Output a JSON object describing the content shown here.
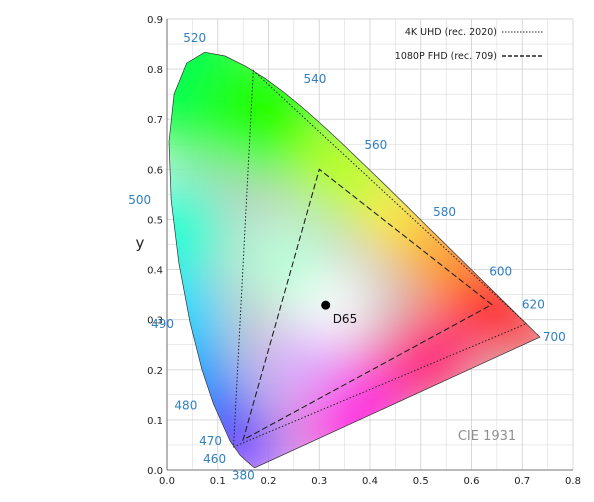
{
  "chart_data": {
    "type": "scatter",
    "title": "",
    "xlabel": "",
    "ylabel": "y",
    "xlim": [
      0.0,
      0.8
    ],
    "ylim": [
      0.0,
      0.9
    ],
    "grid": true,
    "x_ticks": [
      "0.0",
      "0.1",
      "0.2",
      "0.3",
      "0.4",
      "0.5",
      "0.6",
      "0.7",
      "0.8"
    ],
    "y_ticks": [
      "0.0",
      "0.1",
      "0.2",
      "0.3",
      "0.4",
      "0.5",
      "0.6",
      "0.7",
      "0.8",
      "0.9"
    ],
    "watermark": "CIE 1931",
    "colors": {
      "wavelength_label": "#2f7fc1",
      "axis_text": "#222222",
      "grid": "#d4d4d4",
      "triangle": "#222222"
    },
    "spectral_locus": {
      "x": [
        0.1741,
        0.1733,
        0.1714,
        0.1689,
        0.1644,
        0.1566,
        0.144,
        0.1241,
        0.0913,
        0.0687,
        0.0454,
        0.0235,
        0.0082,
        0.0039,
        0.0139,
        0.0389,
        0.0743,
        0.1142,
        0.1547,
        0.1929,
        0.2296,
        0.2658,
        0.3016,
        0.3373,
        0.3731,
        0.4087,
        0.4441,
        0.4788,
        0.5125,
        0.5448,
        0.5752,
        0.6029,
        0.627,
        0.6482,
        0.6658,
        0.6801,
        0.6915,
        0.7006,
        0.7079,
        0.714,
        0.719,
        0.723,
        0.726,
        0.7283,
        0.73,
        0.7347
      ],
      "y": [
        0.005,
        0.0048,
        0.0051,
        0.0069,
        0.0109,
        0.0177,
        0.0297,
        0.0578,
        0.1327,
        0.2007,
        0.295,
        0.4127,
        0.5384,
        0.6548,
        0.7502,
        0.812,
        0.8338,
        0.8262,
        0.8059,
        0.7816,
        0.7543,
        0.7243,
        0.6923,
        0.6589,
        0.6245,
        0.5896,
        0.5547,
        0.5202,
        0.4866,
        0.4544,
        0.4242,
        0.3965,
        0.3725,
        0.3514,
        0.334,
        0.3197,
        0.3083,
        0.2993,
        0.292,
        0.2859,
        0.2809,
        0.277,
        0.274,
        0.2717,
        0.27,
        0.2653
      ]
    },
    "wavelength_labels": [
      {
        "text": "380",
        "x": 0.1741,
        "y": 0.005
      },
      {
        "text": "460",
        "x": 0.144,
        "y": 0.0297
      },
      {
        "text": "470",
        "x": 0.1241,
        "y": 0.0578
      },
      {
        "text": "480",
        "x": 0.0913,
        "y": 0.1327
      },
      {
        "text": "490",
        "x": 0.0454,
        "y": 0.295
      },
      {
        "text": "500",
        "x": 0.0082,
        "y": 0.5384
      },
      {
        "text": "520",
        "x": 0.0743,
        "y": 0.8338
      },
      {
        "text": "540",
        "x": 0.2296,
        "y": 0.7543
      },
      {
        "text": "560",
        "x": 0.3731,
        "y": 0.6245
      },
      {
        "text": "580",
        "x": 0.5125,
        "y": 0.4866
      },
      {
        "text": "600",
        "x": 0.627,
        "y": 0.3725
      },
      {
        "text": "620",
        "x": 0.6915,
        "y": 0.3083
      },
      {
        "text": "700",
        "x": 0.7347,
        "y": 0.2653
      }
    ],
    "series": [
      {
        "name": "4K UHD (rec. 2020)",
        "style": "dotted",
        "points": [
          [
            0.708,
            0.292
          ],
          [
            0.17,
            0.797
          ],
          [
            0.131,
            0.046
          ]
        ]
      },
      {
        "name": "1080P FHD (rec. 709)",
        "style": "dashed",
        "points": [
          [
            0.64,
            0.33
          ],
          [
            0.3,
            0.6
          ],
          [
            0.15,
            0.06
          ]
        ]
      }
    ],
    "legend_position": "top-right",
    "points": [
      {
        "name": "D65",
        "x": 0.3127,
        "y": 0.329
      }
    ]
  }
}
